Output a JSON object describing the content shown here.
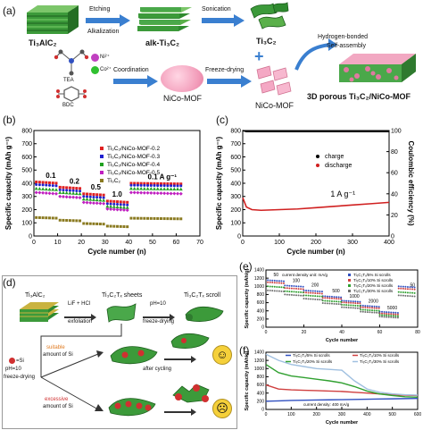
{
  "panel_a": {
    "tag": "(a)",
    "ti3alc2": "Ti₃AlC₂",
    "etching": "Etching",
    "alkalization": "Alkalization",
    "alk_label": "alk-Ti₃C₂",
    "sonication": "Sonication",
    "ti3c2": "Ti₃C₂",
    "tea": "TEA",
    "bdc": "BDC",
    "ni": "Ni²⁺",
    "co": "Co²⁺",
    "coordination": "Coordination",
    "nico_mof": "NiCo-MOF",
    "freeze_drying": "Freeze-drying",
    "nico_mof2": "NiCo-MOF",
    "hbond": "Hydrogen-bonded",
    "selfassembly": "Self-assembly",
    "product": "3D porous Ti₃C₂/NiCo-MOF"
  },
  "panel_b": {
    "tag": "(b)",
    "legend": [
      "Ti₃C₂/NiCo-MOF-0.2",
      "Ti₃C₂/NiCo-MOF-0.3",
      "Ti₃C₂/NiCo-MOF-0.4",
      "Ti₃C₂/NiCo-MOF-0.5",
      "Ti₃C₂"
    ],
    "annotations": [
      "0.1",
      "0.2",
      "0.5",
      "1.0",
      "0.1 A g⁻¹"
    ],
    "colors": [
      "#e02020",
      "#2020d0",
      "#20a020",
      "#c020c0",
      "#8a7a20"
    ]
  },
  "panel_c": {
    "tag": "(c)",
    "legend": [
      "charge",
      "discharge"
    ],
    "annotation": "1 A g⁻¹"
  },
  "panel_d": {
    "tag": "(d)",
    "ti3alc2": "Ti₃AlC₂",
    "lif": "LiF + HCl",
    "exfoliation": "exfoliation",
    "sheets": "Ti₃C₂Tₓ sheets",
    "ph10": "pH=10",
    "freeze": "freeze-drying",
    "scroll": "Ti₃C₂Tₓ scroll",
    "si": "=Si",
    "ph10b": "pH=10",
    "freeze2": "freeze-drying",
    "suitable": "suitable",
    "amount1": "amount of Si",
    "excessive": "excessive",
    "amount2": "amount of Si",
    "after": "after cycling"
  },
  "panel_e": {
    "tag": "(e)",
    "legend": [
      "Ti₃C₂Tₓ/5% Si scrolls",
      "Ti₃C₂Tₓ/10% Si scrolls",
      "Ti₃C₂Tₓ/20% Si scrolls",
      "Ti₃C₂Tₓ/30% Si scrolls"
    ],
    "note": "current density unit: mA/g",
    "rates": [
      "50",
      "100",
      "200",
      "500",
      "1000",
      "2000",
      "5000",
      "50"
    ],
    "colors": [
      "#3050c0",
      "#d04040",
      "#30a030",
      "#707070"
    ]
  },
  "panel_f": {
    "tag": "(f)",
    "legend": [
      "Ti₃C₂Tₓ/5% Si scrolls",
      "Ti₃C₂Tₓ/10% Si scrolls",
      "Ti₃C₂Tₓ/20% Si scrolls",
      "Ti₃C₂Tₓ/30% Si scrolls"
    ],
    "note": "current density: 400 mA/g",
    "colors": [
      "#3050c0",
      "#d04040",
      "#30a030",
      "#a0c0e0"
    ]
  },
  "chart_data": [
    {
      "type": "line",
      "panel": "b",
      "xlabel": "Cycle number (n)",
      "ylabel": "Specific capacity (mAh g⁻¹)",
      "xlim": [
        0,
        70
      ],
      "ylim": [
        0,
        800
      ],
      "xticks": [
        "0",
        "10",
        "20",
        "30",
        "40",
        "50",
        "60",
        "70"
      ],
      "yticks": [
        "0",
        "100",
        "200",
        "300",
        "400",
        "500",
        "600",
        "700",
        "800"
      ],
      "x": [
        1,
        10,
        11,
        20,
        21,
        30,
        31,
        40,
        41,
        63
      ],
      "series": [
        {
          "name": "Ti₃C₂/NiCo-MOF-0.2",
          "values": [
            410,
            400,
            370,
            360,
            320,
            310,
            265,
            255,
            400,
            395
          ]
        },
        {
          "name": "Ti₃C₂/NiCo-MOF-0.3",
          "values": [
            390,
            380,
            350,
            340,
            300,
            290,
            245,
            235,
            385,
            380
          ]
        },
        {
          "name": "Ti₃C₂/NiCo-MOF-0.4",
          "values": [
            360,
            350,
            330,
            320,
            280,
            270,
            225,
            215,
            360,
            355
          ]
        },
        {
          "name": "Ti₃C₂/NiCo-MOF-0.5",
          "values": [
            330,
            320,
            300,
            290,
            255,
            245,
            205,
            195,
            330,
            320
          ]
        },
        {
          "name": "Ti₃C₂",
          "values": [
            140,
            135,
            120,
            115,
            95,
            90,
            75,
            70,
            135,
            130
          ]
        }
      ]
    },
    {
      "type": "line",
      "panel": "c",
      "xlabel": "Cycle number (n)",
      "ylabel": "Specific capacity (mAh g⁻¹)",
      "ylabel2": "Coulombic efficiency (%)",
      "xlim": [
        0,
        400
      ],
      "ylim": [
        0,
        800
      ],
      "ylim2": [
        0,
        100
      ],
      "xticks": [
        "0",
        "100",
        "200",
        "300",
        "400"
      ],
      "yticks": [
        "0",
        "100",
        "200",
        "300",
        "400",
        "500",
        "600",
        "700",
        "800"
      ],
      "y2ticks": [
        "0",
        "20",
        "40",
        "60",
        "80",
        "100"
      ],
      "x": [
        0,
        10,
        25,
        50,
        100,
        150,
        200,
        250,
        300,
        350,
        400
      ],
      "series": [
        {
          "name": "charge",
          "values": [
            100,
            99,
            99,
            99,
            99,
            99,
            99,
            99,
            99,
            99,
            99
          ],
          "axis": "right"
        },
        {
          "name": "discharge",
          "values": [
            290,
            220,
            200,
            195,
            200,
            205,
            215,
            225,
            235,
            245,
            255
          ],
          "axis": "left"
        }
      ]
    },
    {
      "type": "scatter",
      "panel": "e",
      "xlabel": "Cycle number",
      "ylabel": "Specific capacity (mAh/g)",
      "xlim": [
        0,
        80
      ],
      "ylim": [
        0,
        1400
      ],
      "xticks": [
        "0",
        "20",
        "40",
        "60",
        "80"
      ],
      "yticks": [
        "0",
        "200",
        "400",
        "600",
        "800",
        "1000",
        "1200",
        "1400"
      ],
      "x": [
        1,
        10,
        20,
        30,
        40,
        50,
        60,
        70,
        79
      ],
      "series": [
        {
          "name": "Ti₃C₂Tₓ/5% Si scrolls",
          "values": [
            1150,
            1020,
            900,
            760,
            650,
            530,
            380,
            1000,
            980
          ]
        },
        {
          "name": "Ti₃C₂Tₓ/10% Si scrolls",
          "values": [
            1100,
            960,
            850,
            720,
            610,
            490,
            340,
            950,
            930
          ]
        },
        {
          "name": "Ti₃C₂Tₓ/20% Si scrolls",
          "values": [
            1000,
            880,
            780,
            650,
            550,
            430,
            300,
            860,
            840
          ]
        },
        {
          "name": "Ti₃C₂Tₓ/30% Si scrolls",
          "values": [
            900,
            800,
            700,
            590,
            490,
            380,
            260,
            780,
            760
          ]
        }
      ]
    },
    {
      "type": "line",
      "panel": "f",
      "xlabel": "Cycle number",
      "ylabel": "Specific capacity (mAh/g)",
      "xlim": [
        0,
        600
      ],
      "ylim": [
        0,
        1400
      ],
      "xticks": [
        "0",
        "100",
        "200",
        "300",
        "400",
        "500",
        "600"
      ],
      "yticks": [
        "0",
        "200",
        "400",
        "600",
        "800",
        "1000",
        "1200",
        "1400"
      ],
      "x": [
        0,
        50,
        100,
        150,
        200,
        250,
        300,
        350,
        400,
        450,
        500,
        550,
        600
      ],
      "series": [
        {
          "name": "Ti₃C₂Tₓ/5% Si scrolls",
          "values": [
            200,
            210,
            220,
            225,
            230,
            235,
            240,
            245,
            250,
            255,
            260,
            265,
            270
          ]
        },
        {
          "name": "Ti₃C₂Tₓ/10% Si scrolls",
          "values": [
            600,
            500,
            480,
            470,
            460,
            450,
            440,
            420,
            400,
            380,
            360,
            350,
            340
          ]
        },
        {
          "name": "Ti₃C₂Tₓ/20% Si scrolls",
          "values": [
            1100,
            900,
            820,
            780,
            740,
            700,
            650,
            560,
            450,
            380,
            340,
            310,
            300
          ]
        },
        {
          "name": "Ti₃C₂Tₓ/30% Si scrolls",
          "values": [
            1350,
            1200,
            1100,
            1050,
            1000,
            980,
            960,
            700,
            500,
            420,
            380,
            360,
            350
          ]
        }
      ]
    }
  ]
}
